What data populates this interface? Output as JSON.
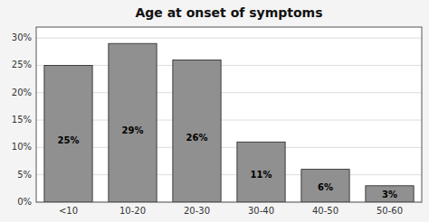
{
  "chart_data": {
    "type": "bar",
    "title": "Age at onset of symptoms",
    "categories": [
      "<10",
      "10-20",
      "20-30",
      "30-40",
      "40-50",
      "50-60"
    ],
    "values": [
      25,
      29,
      26,
      11,
      6,
      3
    ],
    "value_labels": [
      "25%",
      "29%",
      "26%",
      "11%",
      "6%",
      "3%"
    ],
    "data_labels": true,
    "color": "#909090",
    "ylim": [
      0,
      32
    ],
    "yticks": [
      {
        "value": 0,
        "label": "0%"
      },
      {
        "value": 5,
        "label": "5%"
      },
      {
        "value": 10,
        "label": "10%"
      },
      {
        "value": 15,
        "label": "15%"
      },
      {
        "value": 20,
        "label": "20%"
      },
      {
        "value": 25,
        "label": "25%"
      },
      {
        "value": 30,
        "label": "30%"
      }
    ],
    "grid": true
  }
}
